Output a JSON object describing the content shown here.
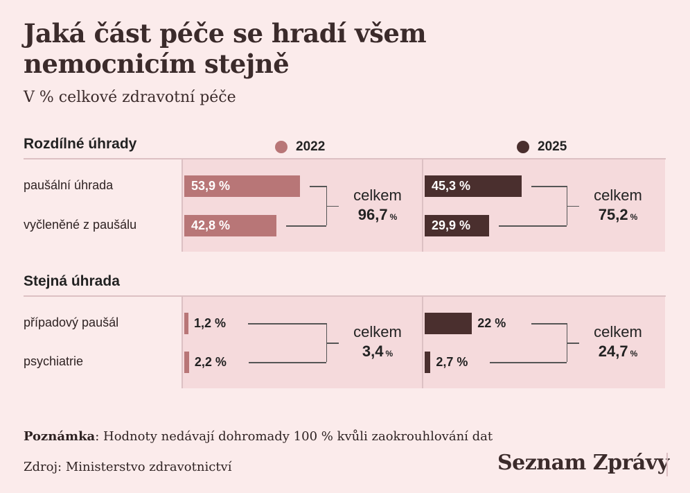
{
  "title": "Jaká část péče se hradí všem nemocnicím stejně",
  "subtitle": "V % celkové zdravotní péče",
  "colors": {
    "y2022": "#b87677",
    "y2025": "#4a2f2e",
    "panel": "#f5dadc",
    "background": "#fbebeb"
  },
  "legend": {
    "y2022": "2022",
    "y2025": "2025"
  },
  "total_label": "celkem",
  "chart_data": {
    "type": "bar",
    "orientation": "horizontal",
    "title": "Jaká část péče se hradí všem nemocnicím stejně",
    "subtitle": "V % celkové zdravotní péče",
    "unit": "%",
    "xlim": [
      0,
      60
    ],
    "legend": [
      "2022",
      "2025"
    ],
    "groups": [
      {
        "name": "Rozdílné úhrady",
        "categories": [
          "paušální úhrada",
          "vyčleněné z paušálu"
        ],
        "series": [
          {
            "name": "2022",
            "values": [
              53.9,
              42.8
            ],
            "labels": [
              "53,9 %",
              "42,8 %"
            ],
            "total": "96,7"
          },
          {
            "name": "2025",
            "values": [
              45.3,
              29.9
            ],
            "labels": [
              "45,3 %",
              "29,9 %"
            ],
            "total": "75,2"
          }
        ]
      },
      {
        "name": "Stejná úhrada",
        "categories": [
          "případový paušál",
          "psychiatrie"
        ],
        "series": [
          {
            "name": "2022",
            "values": [
              1.2,
              2.2
            ],
            "labels": [
              "1,2 %",
              "2,2 %"
            ],
            "total": "3,4"
          },
          {
            "name": "2025",
            "values": [
              22,
              2.7
            ],
            "labels": [
              "22 %",
              "2,7 %"
            ],
            "total": "24,7"
          }
        ]
      }
    ],
    "total_unit": "%"
  },
  "note": {
    "label": "Poznámka",
    "text": ": Hodnoty nedávají dohromady 100 % kvůli zaokrouhlování dat"
  },
  "source": "Zdroj: Ministerstvo zdravotnictví",
  "logo": "Seznam Zprávy"
}
